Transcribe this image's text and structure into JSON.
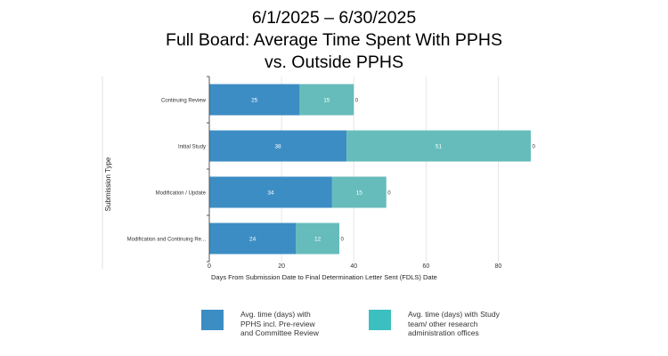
{
  "title_lines": [
    "6/1/2025 – 6/30/2025",
    "Full Board: Average Time Spent With PPHS",
    "vs. Outside PPHS"
  ],
  "colors": {
    "pphs": "#3c8dc4",
    "study_team": "#66bcbb",
    "legend_study_team": "#3cbfbf"
  },
  "chart_data": {
    "type": "bar",
    "orientation": "horizontal",
    "stacked": true,
    "categories": [
      "Continuing Review",
      "Initial Study",
      "Modification / Update",
      "Modification and Continuing Re..."
    ],
    "series": [
      {
        "name": "Avg. time (days) with PPHS incl. Pre-review and Committee Review",
        "values": [
          25,
          38,
          34,
          24
        ]
      },
      {
        "name": "Avg. time (days) with Study team/ other research administration offices",
        "values": [
          15,
          51,
          15,
          12
        ]
      }
    ],
    "end_labels": [
      "0",
      "0",
      "0",
      "0"
    ],
    "xlabel": "Days From Submission Date to Final Determination Letter Sent (FDLS) Date",
    "ylabel": "Submission Type",
    "xlim": [
      0,
      90
    ],
    "xticks": [
      0,
      20,
      40,
      60,
      80
    ],
    "grid": true,
    "legend_position": "bottom"
  }
}
